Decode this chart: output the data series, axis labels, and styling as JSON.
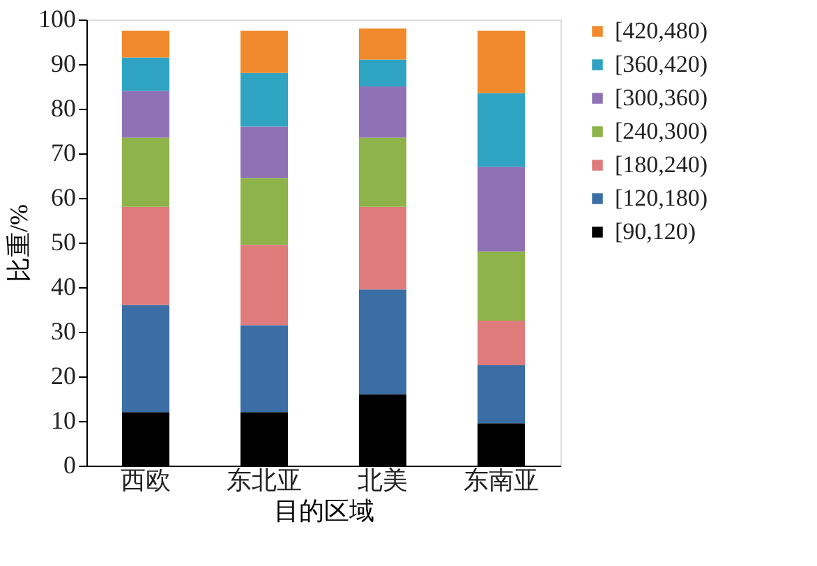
{
  "chart_data": {
    "type": "bar",
    "stacked": true,
    "xlabel": "目的区域",
    "ylabel": "比重/%",
    "categories": [
      "西欧",
      "东北亚",
      "北美",
      "东南亚"
    ],
    "series": [
      {
        "name": "[90,120)",
        "color": "#000000",
        "values": [
          12,
          12,
          16,
          9.5
        ]
      },
      {
        "name": "[120,180)",
        "color": "#3a6ea5",
        "values": [
          24,
          19.5,
          23.5,
          13
        ]
      },
      {
        "name": "[180,240)",
        "color": "#e07b7b",
        "values": [
          22,
          18,
          18.5,
          10
        ]
      },
      {
        "name": "[240,300)",
        "color": "#8db34a",
        "values": [
          15.5,
          15,
          15.5,
          15.5
        ]
      },
      {
        "name": "[300,360)",
        "color": "#8e72b5",
        "values": [
          10.5,
          11.5,
          11.5,
          19
        ]
      },
      {
        "name": "[360,420)",
        "color": "#2ea3c2",
        "values": [
          7.5,
          12,
          6,
          16.5
        ]
      },
      {
        "name": "[420,480)",
        "color": "#f08a2c",
        "values": [
          6,
          9.5,
          7,
          14
        ]
      }
    ],
    "ylim": [
      0,
      100
    ],
    "yticks": [
      0,
      10,
      20,
      30,
      40,
      50,
      60,
      70,
      80,
      90,
      100
    ],
    "grid": false,
    "legend": "right"
  }
}
